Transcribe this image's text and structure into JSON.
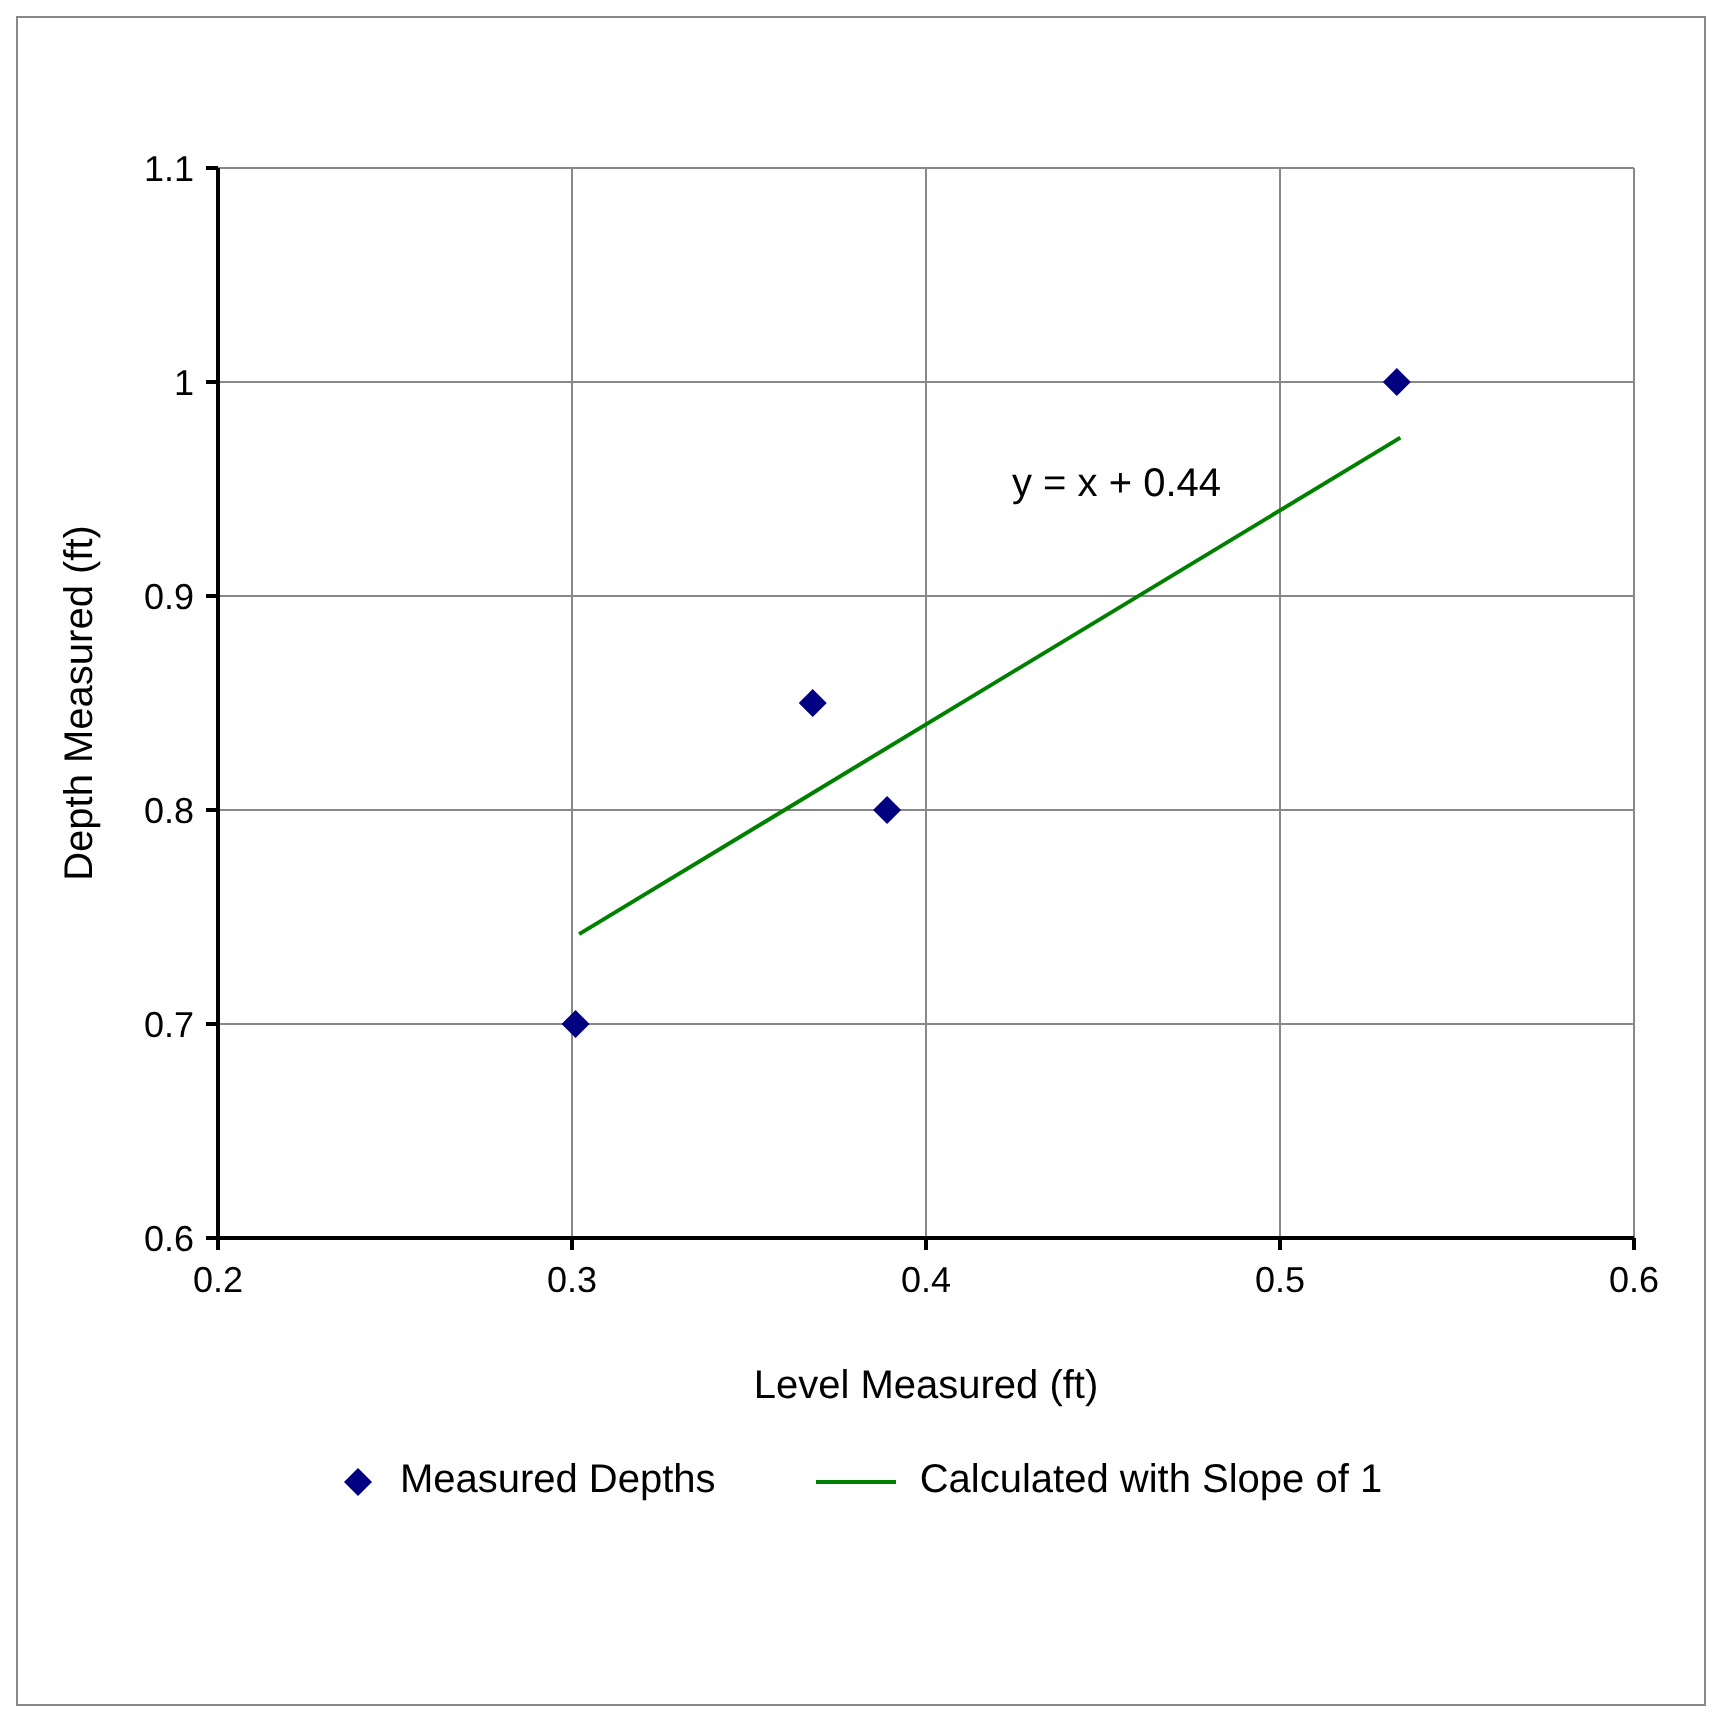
{
  "chart_data": {
    "type": "scatter",
    "xlabel": "Level Measured (ft)",
    "ylabel": "Depth Measured (ft)",
    "xlim": [
      0.2,
      0.6
    ],
    "xticks": [
      0.2,
      0.3,
      0.4,
      0.5,
      0.6
    ],
    "ylim": [
      0.6,
      1.1
    ],
    "yticks": [
      0.6,
      0.7,
      0.8,
      0.9,
      1,
      1.1
    ],
    "grid": true,
    "legend": "bottom",
    "series": [
      {
        "name": "Measured Depths",
        "marker": "diamond",
        "color": "#000080",
        "x": [
          0.301,
          0.368,
          0.389,
          0.533
        ],
        "values": [
          0.7,
          0.85,
          0.8,
          1.0
        ]
      },
      {
        "name": "Calculated with Slope of 1",
        "type": "line",
        "marker": "none",
        "color": "#008000",
        "x": [
          0.302,
          0.534
        ],
        "values": [
          0.742,
          0.974
        ]
      }
    ],
    "annotations": [
      "y = x + 0.44"
    ]
  }
}
